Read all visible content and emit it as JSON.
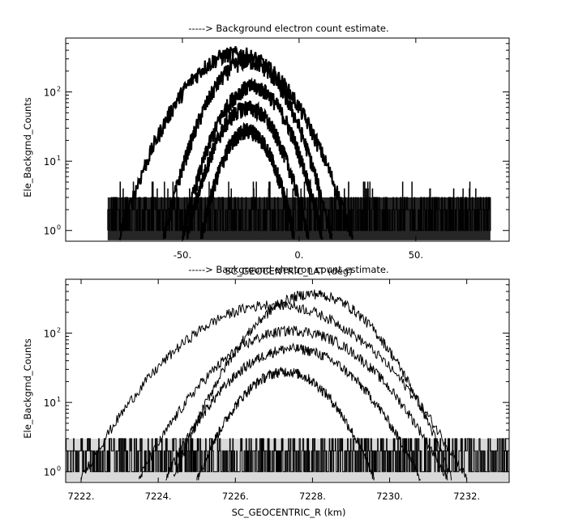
{
  "chart_data": [
    {
      "type": "line",
      "title": "-----> Background electron count estimate.",
      "xlabel": "SC_GEOCENTRIC_LAT (deg)",
      "ylabel": "Ele_Backgrnd_Counts",
      "xlim": [
        -100,
        90
      ],
      "ylim": [
        0.7,
        600
      ],
      "yscale": "log",
      "x_ticks": [
        -50,
        0,
        50
      ],
      "x_tick_labels": [
        "-50.",
        "0.",
        "50."
      ],
      "y_ticks": [
        1,
        10,
        100
      ],
      "y_tick_labels": [
        "10",
        "10",
        "10"
      ],
      "y_tick_exponents": [
        "0",
        "1",
        "2"
      ],
      "data_x_range": [
        -82,
        82
      ],
      "noise_floor_values": [
        1,
        2,
        3
      ],
      "noise_max_values": [
        5,
        4
      ],
      "series": [
        {
          "center_x": -27,
          "half_width_x": 50,
          "peak": 360
        },
        {
          "center_x": -22,
          "half_width_x": 36,
          "peak": 280
        },
        {
          "center_x": -20,
          "half_width_x": 30,
          "peak": 120
        },
        {
          "center_x": -22,
          "half_width_x": 26,
          "peak": 60
        },
        {
          "center_x": -22,
          "half_width_x": 20,
          "peak": 28
        }
      ]
    },
    {
      "type": "line",
      "title": "-----> Background electron count estimate.",
      "xlabel": "SC_GEOCENTRIC_R (km)",
      "ylabel": "Ele_Backgrnd_Counts",
      "xlim": [
        7221.6,
        7233.1
      ],
      "ylim": [
        0.7,
        600
      ],
      "yscale": "log",
      "x_ticks": [
        7222,
        7224,
        7226,
        7228,
        7230,
        7232
      ],
      "x_tick_labels": [
        "7222.",
        "7224.",
        "7226.",
        "7228.",
        "7230.",
        "7232."
      ],
      "y_ticks": [
        1,
        10,
        100
      ],
      "y_tick_labels": [
        "10",
        "10",
        "10"
      ],
      "y_tick_exponents": [
        "0",
        "1",
        "2"
      ],
      "data_x_range": [
        7221.6,
        7233.1
      ],
      "noise_floor_values": [
        1,
        2,
        3
      ],
      "series": [
        {
          "center_x": 7228.0,
          "half_width_x": 3.6,
          "peak": 370
        },
        {
          "center_x": 7227.0,
          "half_width_x": 5.0,
          "peak": 260
        },
        {
          "center_x": 7227.5,
          "half_width_x": 4.0,
          "peak": 110
        },
        {
          "center_x": 7227.5,
          "half_width_x": 3.3,
          "peak": 60
        },
        {
          "center_x": 7227.3,
          "half_width_x": 2.3,
          "peak": 28
        }
      ]
    }
  ]
}
